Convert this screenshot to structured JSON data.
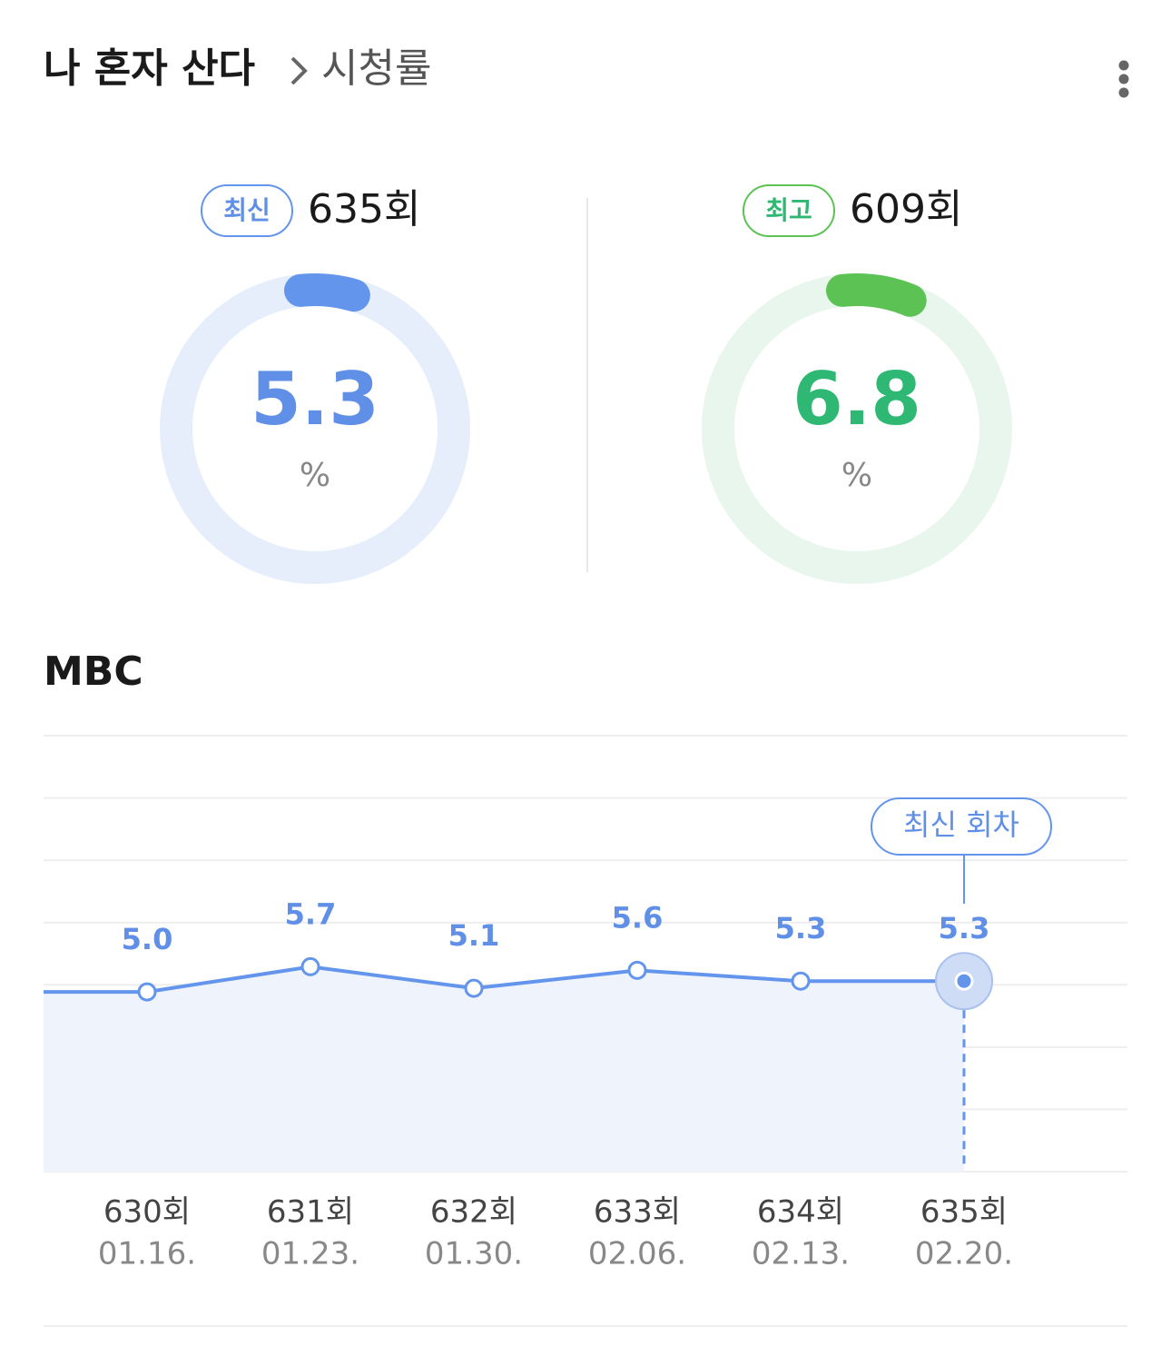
{
  "header": {
    "title": "나 혼자 산다",
    "subtitle": "시청률"
  },
  "summary": [
    {
      "badge": "최신",
      "episode": "635회",
      "value": 5.3,
      "unit": "%",
      "color": "#6495ec",
      "track": "#e5eefa",
      "text_color": "#5f8fe6"
    },
    {
      "badge": "최고",
      "episode": "609회",
      "value": 6.8,
      "unit": "%",
      "color": "#5bc253",
      "track": "#e8f6ee",
      "text_color": "#2fb873"
    }
  ],
  "chart_data": {
    "type": "line",
    "title": "MBC",
    "categories": [
      "630회",
      "631회",
      "632회",
      "633회",
      "634회",
      "635회"
    ],
    "dates": [
      "01.16.",
      "01.23.",
      "01.30.",
      "02.06.",
      "02.13.",
      "02.20."
    ],
    "values": [
      5.0,
      5.7,
      5.1,
      5.6,
      5.3,
      5.3
    ],
    "value_labels": [
      "5.0",
      "5.7",
      "5.1",
      "5.6",
      "5.3",
      "5.3"
    ],
    "annotation": "최신 회차",
    "color": "#6495ec",
    "ylim": [
      0,
      12
    ]
  }
}
